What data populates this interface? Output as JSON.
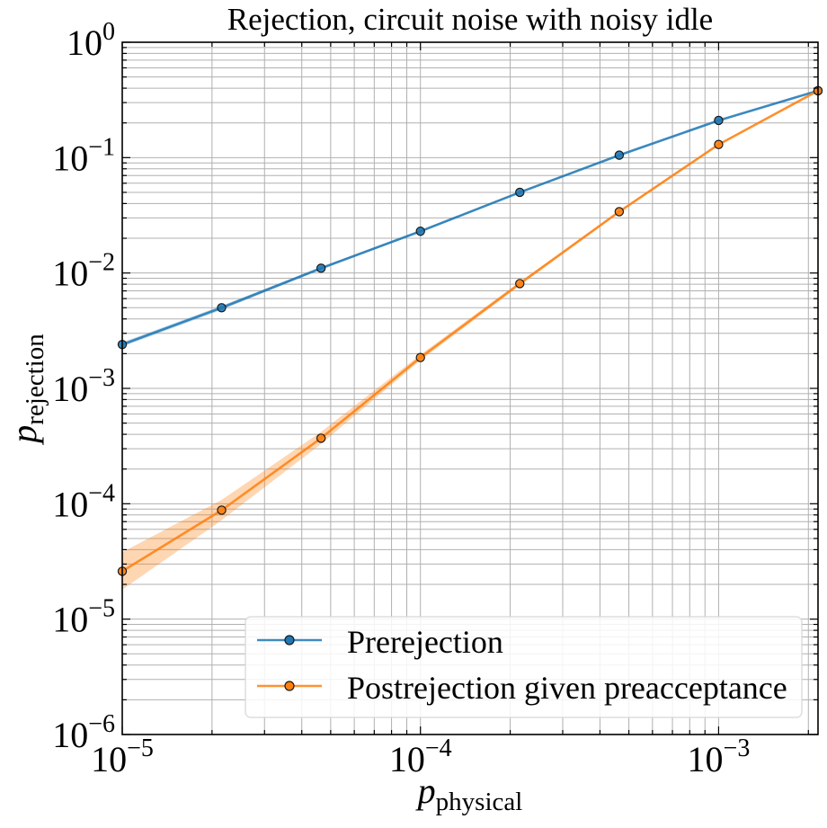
{
  "chart_data": {
    "type": "line",
    "title": "Rejection, circuit noise with noisy idle",
    "xlabel": {
      "base": "p",
      "subscript": "physical"
    },
    "ylabel": {
      "base": "p",
      "subscript": "rejection"
    },
    "xscale": "log",
    "yscale": "log",
    "xlim": [
      1e-05,
      0.0021544
    ],
    "ylim": [
      1e-06,
      1
    ],
    "grid": true,
    "legend_position": "lower-right",
    "x_ticks": [
      {
        "value": 1e-05,
        "base": "10",
        "exp": "−5"
      },
      {
        "value": 0.0001,
        "base": "10",
        "exp": "−4"
      },
      {
        "value": 0.001,
        "base": "10",
        "exp": "−3"
      }
    ],
    "y_ticks": [
      {
        "value": 1e-06,
        "base": "10",
        "exp": "−6"
      },
      {
        "value": 1e-05,
        "base": "10",
        "exp": "−5"
      },
      {
        "value": 0.0001,
        "base": "10",
        "exp": "−4"
      },
      {
        "value": 0.001,
        "base": "10",
        "exp": "−3"
      },
      {
        "value": 0.01,
        "base": "10",
        "exp": "−2"
      },
      {
        "value": 0.1,
        "base": "10",
        "exp": "−1"
      },
      {
        "value": 1,
        "base": "10",
        "exp": "0"
      }
    ],
    "x": [
      1e-05,
      2.154e-05,
      4.642e-05,
      0.0001,
      0.0002154,
      0.0004642,
      0.001,
      0.002154
    ],
    "series": [
      {
        "name": "Prerejection",
        "color": "#1f77b4",
        "values": [
          0.0024,
          0.005,
          0.011,
          0.023,
          0.05,
          0.105,
          0.21,
          0.38
        ],
        "band_lower": [
          0.0023,
          0.0048,
          0.0107,
          0.0226,
          0.0494,
          0.1042,
          0.2088,
          0.3785
        ],
        "band_upper": [
          0.0025,
          0.0052,
          0.0113,
          0.0234,
          0.0506,
          0.1058,
          0.2112,
          0.3815
        ]
      },
      {
        "name": "Postrejection given preacceptance",
        "color": "#ff7f0e",
        "values": [
          2.6e-05,
          8.8e-05,
          0.00037,
          0.00185,
          0.0081,
          0.034,
          0.13,
          0.38
        ],
        "band_lower": [
          1.8e-05,
          7.2e-05,
          0.00033,
          0.00175,
          0.0078,
          0.0332,
          0.1285,
          0.378
        ],
        "band_upper": [
          3.8e-05,
          0.000108,
          0.00042,
          0.00196,
          0.0084,
          0.0348,
          0.1315,
          0.382
        ]
      }
    ]
  }
}
